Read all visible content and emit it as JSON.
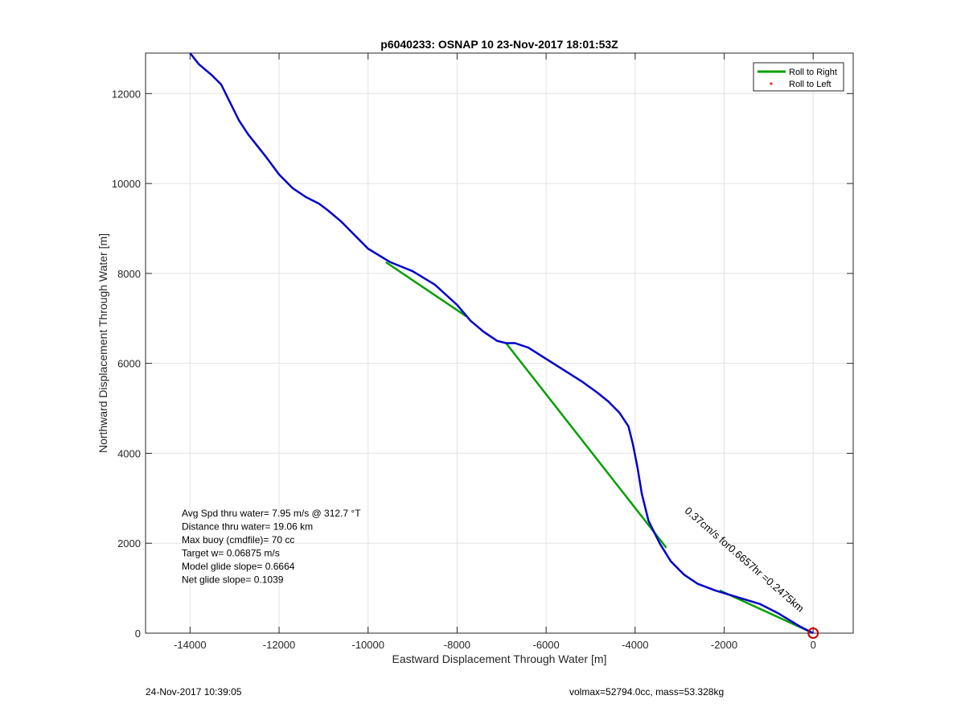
{
  "chart_data": {
    "type": "line",
    "title": "p6040233: OSNAP 10 23-Nov-2017 18:01:53Z",
    "xlabel": "Eastward Displacement Through Water [m]",
    "ylabel": "Northward Displacement Through Water [m]",
    "xlim": [
      -15000,
      900
    ],
    "ylim": [
      0,
      12900
    ],
    "xticks": [
      -14000,
      -12000,
      -10000,
      -8000,
      -6000,
      -4000,
      -2000,
      0
    ],
    "yticks": [
      0,
      2000,
      4000,
      6000,
      8000,
      10000,
      12000
    ],
    "grid": true,
    "legend": {
      "placement": "top-right",
      "entries": [
        {
          "label": "Roll to Right",
          "color": "#00a000",
          "marker": "line"
        },
        {
          "label": "Roll to Left",
          "color": "#ff0000",
          "marker": "dot"
        }
      ]
    },
    "series": [
      {
        "color": "#0000cc",
        "x": [
          0,
          -300,
          -800,
          -1200,
          -1700,
          -2200,
          -2600,
          -2900,
          -3200,
          -3450,
          -3700,
          -3850,
          -3950,
          -4050,
          -4150,
          -4350,
          -4600,
          -4850,
          -5200,
          -5600,
          -6000,
          -6400,
          -6700,
          -6900,
          -7100,
          -7400,
          -7700,
          -8000,
          -8500,
          -9000,
          -9500,
          -10000,
          -10300,
          -10600,
          -10900,
          -11100,
          -11400,
          -11700,
          -12000,
          -12300,
          -12500,
          -12700,
          -12900,
          -13100,
          -13300,
          -13500,
          -13800,
          -14000
        ],
        "y": [
          0,
          150,
          450,
          650,
          800,
          950,
          1100,
          1300,
          1600,
          2000,
          2500,
          3100,
          3700,
          4200,
          4600,
          4900,
          5150,
          5350,
          5600,
          5850,
          6100,
          6350,
          6450,
          6450,
          6500,
          6700,
          6950,
          7300,
          7750,
          8050,
          8250,
          8550,
          8850,
          9150,
          9400,
          9550,
          9700,
          9900,
          10200,
          10600,
          10850,
          11100,
          11400,
          11800,
          12200,
          12400,
          12650,
          12900
        ]
      },
      {
        "name": "Roll to Right",
        "color": "#00a000",
        "segments": [
          {
            "x": [
              0,
              -2100
            ],
            "y": [
              0,
              950
            ]
          },
          {
            "x": [
              -3300,
              -6900
            ],
            "y": [
              1900,
              6450
            ]
          },
          {
            "x": [
              -7800,
              -9600
            ],
            "y": [
              7050,
              8250
            ]
          }
        ]
      }
    ],
    "start_marker": {
      "x": 0,
      "y": 0,
      "color": "#cc0000"
    },
    "annotation_rotated": "0.37cm/s for0.6657hr =0.2475km",
    "annotation_lines": [
      "Avg Spd thru water=  7.95 m/s @ 312.7 °T",
      "Distance thru water= 19.06 km",
      "Max buoy (cmdfile)= 70 cc",
      "Target w= 0.06875 m/s",
      "Model glide slope= 0.6664",
      "Net glide slope= 0.1039"
    ]
  },
  "footer": {
    "left": "24-Nov-2017 10:39:05",
    "right": "volmax=52794.0cc, mass=53.328kg"
  }
}
